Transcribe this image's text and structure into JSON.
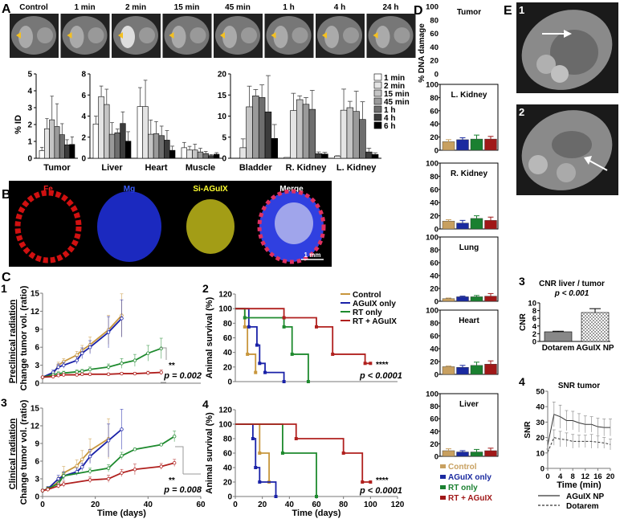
{
  "panel_labels": {
    "a": "A",
    "b": "B",
    "c": "C",
    "c1": "1",
    "c2": "2",
    "c3": "3",
    "c4": "4",
    "d": "D",
    "e": "E",
    "e1": "1",
    "e2": "2",
    "e3": "3",
    "e4": "4"
  },
  "panel_a": {
    "image_labels": [
      "Control",
      "1 min",
      "2 min",
      "15 min",
      "45 min",
      "1 h",
      "4 h",
      "24 h"
    ],
    "ylabel": "% ID",
    "legend": [
      "1 min",
      "2 min",
      "15 min",
      "45 min",
      "1 h",
      "4 h",
      "6 h"
    ],
    "legend_colors": [
      "#ffffff",
      "#e4e4e4",
      "#c4c4c4",
      "#9a9a9a",
      "#6e6e6e",
      "#3c3c3c",
      "#000000"
    ]
  },
  "panel_b": {
    "labels": [
      "Fe",
      "Mg",
      "Si-AGuIX",
      "Merge"
    ],
    "label_colors": [
      "#ff2020",
      "#3a5cff",
      "#ffff30",
      "#ffffff"
    ],
    "scale_bar": "1 mm"
  },
  "panel_c": {
    "row1_label": "Preclinical radiation",
    "row2_label": "Clinical radiation",
    "legend": [
      "Control",
      "AGuIX only",
      "RT only",
      "RT + AGuIX"
    ],
    "colors": [
      "#c8963c",
      "#1a22a8",
      "#1e8a2e",
      "#b0201e"
    ],
    "c1_p": "p = 0.002",
    "c1_sig": "**",
    "c3_p": "p = 0.008",
    "c3_sig": "**",
    "c2_p": "p < 0.0001",
    "c2_sig": "****",
    "c4_p": "p < 0.0001",
    "c4_sig": "****"
  },
  "panel_d": {
    "ylabel": "% DNA damage",
    "legend": [
      "Control",
      "AGuIX only",
      "RT only",
      "RT + AGuIX"
    ],
    "colors": [
      "#c8a060",
      "#1a2aa0",
      "#1a8030",
      "#a01818"
    ]
  },
  "panel_e": {
    "cnr_p": "p < 0.001",
    "legend": [
      "AGuIX NP",
      "Dotarem"
    ]
  },
  "chart_data": [
    {
      "id": "A",
      "type": "bar",
      "ylabel": "% ID",
      "series_names": [
        "1 min",
        "2 min",
        "15 min",
        "45 min",
        "1 h",
        "4 h",
        "6 h"
      ],
      "groups": [
        {
          "name": "Tumor",
          "ylim": [
            0,
            5
          ],
          "yticks": [
            0,
            1,
            2,
            3,
            4,
            5
          ],
          "values": [
            0.45,
            1.75,
            2.28,
            1.88,
            1.4,
            0.8,
            0.82
          ],
          "errors": [
            0.2,
            0.6,
            1.4,
            1.35,
            0.65,
            0.3,
            0.45
          ]
        },
        {
          "name": "Liver",
          "ylim": [
            0,
            8
          ],
          "yticks": [
            0,
            2,
            4,
            6,
            8
          ],
          "values": [
            3.25,
            5.85,
            5.1,
            2.28,
            2.42,
            3.3,
            1.62
          ],
          "errors": [
            0.75,
            1.0,
            1.45,
            1.1,
            0.35,
            1.1,
            0.9
          ]
        },
        {
          "name": "Heart",
          "ylim": [
            0,
            8
          ],
          "yticks": [
            0,
            2,
            4,
            6,
            8
          ],
          "values": [
            4.9,
            4.9,
            2.28,
            2.33,
            2.15,
            1.72,
            0.75
          ],
          "errors": [
            1.8,
            2.5,
            1.35,
            1.15,
            0.9,
            0.9,
            0.4
          ]
        },
        {
          "name": "Muscle",
          "ylim": [
            0,
            8
          ],
          "yticks": [
            0,
            2,
            4,
            6,
            8
          ],
          "values": [
            1.0,
            0.78,
            0.78,
            0.6,
            0.45,
            0.25,
            0.38
          ],
          "errors": [
            0.5,
            0.35,
            0.55,
            0.35,
            0.2,
            0.1,
            0.15
          ]
        },
        {
          "name": "Bladder",
          "ylim": [
            0,
            20
          ],
          "yticks": [
            0,
            5,
            10,
            15,
            20
          ],
          "values": [
            0,
            2.5,
            12.2,
            14.8,
            14.4,
            11.0,
            4.7
          ],
          "errors": [
            0,
            2.1,
            4.9,
            1.5,
            3.0,
            8.6,
            3.3
          ]
        },
        {
          "name": "R. Kidney",
          "ylim": [
            0,
            20
          ],
          "yticks": [
            0,
            5,
            10,
            15,
            20
          ],
          "values": [
            0.2,
            11.3,
            13.9,
            12.8,
            11.6,
            1.1,
            1.0
          ],
          "errors": [
            0,
            4.1,
            0.9,
            1.6,
            4.5,
            0.4,
            0.4
          ]
        },
        {
          "name": "L. Kidney",
          "ylim": [
            0,
            20
          ],
          "yticks": [
            0,
            5,
            10,
            15,
            20
          ],
          "values": [
            0.5,
            11.4,
            12.0,
            11.1,
            9.2,
            1.5,
            0.9
          ],
          "errors": [
            0.1,
            5.0,
            1.5,
            4.8,
            4.2,
            0.9,
            0.4
          ]
        }
      ]
    },
    {
      "id": "C1",
      "type": "line",
      "xlabel": "",
      "ylabel": "Change tumor vol. (ratio)",
      "xlim": [
        0,
        60
      ],
      "ylim": [
        0,
        15
      ],
      "yticks": [
        0,
        3,
        6,
        9,
        12,
        15
      ],
      "series": [
        {
          "name": "Control",
          "x": [
            0,
            4,
            6,
            8,
            13,
            15,
            18,
            25,
            30
          ],
          "y": [
            1,
            1.5,
            3,
            3.6,
            4.7,
            5.5,
            6.4,
            8.9,
            11.3
          ],
          "err": [
            0.1,
            0.4,
            0.5,
            0.5,
            0.6,
            0.8,
            1.3,
            2.4,
            3.6
          ]
        },
        {
          "name": "AGuIX only",
          "x": [
            0,
            4,
            6,
            8,
            13,
            15,
            18,
            25,
            30
          ],
          "y": [
            1,
            1.8,
            2.7,
            3,
            3.8,
            5,
            6,
            8.5,
            10.8
          ],
          "err": [
            0.1,
            0.4,
            0.5,
            0.5,
            0.6,
            0.9,
            1.1,
            2.6,
            3.1
          ]
        },
        {
          "name": "RT only",
          "x": [
            0,
            4,
            6,
            8,
            13,
            15,
            18,
            25,
            30,
            35,
            40,
            45
          ],
          "y": [
            1,
            1.4,
            1.6,
            1.7,
            1.9,
            2.0,
            2.3,
            2.7,
            3.3,
            3.8,
            5,
            5.8
          ],
          "err": [
            0.1,
            0.2,
            0.3,
            0.3,
            0.3,
            0.3,
            0.4,
            0.5,
            0.8,
            1.0,
            1.3,
            1.7
          ]
        },
        {
          "name": "RT + AGuIX",
          "x": [
            0,
            4,
            6,
            8,
            13,
            15,
            18,
            25,
            30,
            35,
            40,
            45
          ],
          "y": [
            1,
            1.1,
            1.3,
            1.4,
            1.4,
            1.5,
            1.5,
            1.5,
            1.6,
            1.6,
            1.7,
            1.8
          ],
          "err": [
            0.1,
            0.1,
            0.2,
            0.2,
            0.2,
            0.2,
            0.2,
            0.2,
            0.2,
            0.2,
            0.3,
            0.4
          ]
        }
      ]
    },
    {
      "id": "C2",
      "type": "line",
      "ylabel": "Animal survival (%)",
      "xlim": [
        0,
        120
      ],
      "ylim": [
        0,
        120
      ],
      "yticks": [
        0,
        20,
        40,
        60,
        80,
        100,
        120
      ],
      "series": [
        {
          "name": "Control",
          "x": [
            0,
            7,
            9,
            15
          ],
          "y": [
            100,
            75,
            37.5,
            12.5
          ]
        },
        {
          "name": "AGuIX only",
          "x": [
            0,
            10,
            16,
            18,
            22,
            36
          ],
          "y": [
            100,
            75,
            50,
            25,
            12.5,
            0
          ]
        },
        {
          "name": "RT only",
          "x": [
            0,
            7,
            36,
            42,
            54
          ],
          "y": [
            100,
            87.5,
            75,
            37.5,
            0
          ]
        },
        {
          "name": "RT + AGuIX",
          "x": [
            0,
            36,
            60,
            72,
            96,
            100
          ],
          "y": [
            100,
            87.5,
            75,
            37.5,
            25,
            25
          ]
        }
      ]
    },
    {
      "id": "C3",
      "type": "line",
      "xlabel": "Time (days)",
      "ylabel": "Change tumor vol. (ratio)",
      "xlim": [
        0,
        60
      ],
      "ylim": [
        0,
        15
      ],
      "xticks": [
        0,
        20,
        40,
        60
      ],
      "yticks": [
        0,
        3,
        6,
        9,
        12,
        15
      ],
      "series": [
        {
          "name": "Control",
          "x": [
            0,
            2,
            6,
            8,
            13,
            15,
            18,
            25
          ],
          "y": [
            1,
            1.2,
            2.5,
            4,
            5.2,
            6.3,
            7.8,
            9.8
          ],
          "err": [
            0.2,
            0.4,
            0.8,
            1.1,
            1.0,
            1.5,
            2.0,
            3.4
          ]
        },
        {
          "name": "AGuIX only",
          "x": [
            0,
            2,
            6,
            8,
            13,
            15,
            18,
            25,
            30
          ],
          "y": [
            1,
            1.3,
            3,
            3.5,
            4.2,
            5,
            6.8,
            9.5,
            11.4
          ],
          "err": [
            0.2,
            0.4,
            0.6,
            0.7,
            0.6,
            0.6,
            1.2,
            2.8,
            3.4
          ]
        },
        {
          "name": "RT only",
          "x": [
            0,
            2,
            6,
            8,
            18,
            25,
            30,
            35,
            45,
            50
          ],
          "y": [
            1,
            1.3,
            2.2,
            3.5,
            4.3,
            4.8,
            6.9,
            8,
            8.8,
            10.2
          ],
          "err": [
            0.2,
            0.3,
            0.4,
            0.5,
            0.5,
            0.6,
            0.6,
            0.2,
            0.2,
            0.9
          ]
        },
        {
          "name": "RT + AGuIX",
          "x": [
            0,
            2,
            6,
            8,
            18,
            25,
            30,
            35,
            45,
            50
          ],
          "y": [
            1,
            1.2,
            1.8,
            2.1,
            2.8,
            3,
            4,
            4.6,
            5.1,
            5.7
          ],
          "err": [
            0.2,
            0.3,
            0.4,
            0.5,
            0.5,
            0.6,
            0.6,
            0.9,
            0.5,
            0.6
          ]
        }
      ]
    },
    {
      "id": "C4",
      "type": "line",
      "xlabel": "Time (days)",
      "ylabel": "Animal survival (%)",
      "xlim": [
        0,
        120
      ],
      "ylim": [
        0,
        120
      ],
      "xticks": [
        0,
        20,
        40,
        60,
        80,
        100,
        120
      ],
      "yticks": [
        0,
        20,
        40,
        60,
        80,
        100,
        120
      ],
      "series": [
        {
          "name": "Control",
          "x": [
            0,
            18,
            25
          ],
          "y": [
            100,
            60,
            20
          ]
        },
        {
          "name": "AGuIX only",
          "x": [
            0,
            13,
            15,
            18,
            30
          ],
          "y": [
            100,
            80,
            40,
            20,
            0
          ]
        },
        {
          "name": "RT only",
          "x": [
            0,
            35,
            60
          ],
          "y": [
            100,
            60,
            0
          ]
        },
        {
          "name": "RT + AGuIX",
          "x": [
            0,
            45,
            80,
            94,
            100
          ],
          "y": [
            100,
            80,
            60,
            20,
            20
          ]
        }
      ]
    },
    {
      "id": "D",
      "type": "bar",
      "ylabel": "% DNA damage",
      "ylim": [
        0,
        100
      ],
      "yticks": [
        0,
        20,
        40,
        60,
        80,
        100
      ],
      "series_names": [
        "Control",
        "AGuIX only",
        "RT only",
        "RT + AGuIX"
      ],
      "groups": [
        {
          "name": "Tumor",
          "values": [],
          "errors": []
        },
        {
          "name": "L. Kidney",
          "values": [
            13,
            16,
            17,
            17
          ],
          "errors": [
            3,
            3,
            6,
            4
          ]
        },
        {
          "name": "R. Kidney",
          "values": [
            12,
            9,
            16,
            13
          ],
          "errors": [
            2,
            4,
            4,
            5
          ]
        },
        {
          "name": "Lung",
          "values": [
            4,
            7,
            7,
            8
          ],
          "errors": [
            1,
            1,
            2,
            4
          ]
        },
        {
          "name": "Heart",
          "values": [
            12,
            11,
            14,
            16
          ],
          "errors": [
            1,
            3,
            5,
            5
          ]
        },
        {
          "name": "Liver",
          "values": [
            9,
            7,
            7,
            9
          ],
          "errors": [
            3,
            2,
            4,
            4
          ]
        }
      ]
    },
    {
      "id": "E3",
      "type": "bar",
      "title": "CNR liver / tumor",
      "ylabel": "CNR",
      "ylim": [
        0,
        10
      ],
      "yticks": [
        0,
        2,
        4,
        6,
        8,
        10
      ],
      "categories": [
        "Dotarem",
        "AGuIX NP"
      ],
      "values": [
        2.5,
        7.5
      ],
      "errors": [
        0.15,
        1.0
      ]
    },
    {
      "id": "E4",
      "type": "line",
      "title": "SNR  tumor",
      "xlabel": "Time (min)",
      "ylabel": "SNR",
      "xlim": [
        0,
        20
      ],
      "ylim": [
        0,
        50
      ],
      "xticks": [
        0,
        4,
        8,
        12,
        16,
        20
      ],
      "yticks": [
        0,
        10,
        20,
        30,
        40,
        50
      ],
      "series": [
        {
          "name": "AGuIX NP",
          "x": [
            0,
            2,
            4,
            6,
            8,
            10,
            12,
            14,
            16,
            18,
            20
          ],
          "y": [
            15,
            35,
            33.5,
            31,
            31,
            29.5,
            28.5,
            28.5,
            27,
            26.5,
            26.5
          ],
          "err": [
            3,
            8,
            7.5,
            6.5,
            6,
            6,
            5.5,
            5,
            5.5,
            5.5,
            5.5
          ]
        },
        {
          "name": "Dotarem",
          "x": [
            0,
            2,
            4,
            6,
            8,
            10,
            12,
            14,
            16,
            18,
            20
          ],
          "y": [
            10.5,
            20,
            19,
            18.5,
            17.5,
            17.5,
            17.5,
            17.5,
            17,
            16.5,
            15.5
          ],
          "err": [
            2,
            5,
            5,
            4.5,
            4.5,
            4,
            4,
            4.5,
            4,
            3.5,
            3.5
          ]
        }
      ]
    }
  ]
}
